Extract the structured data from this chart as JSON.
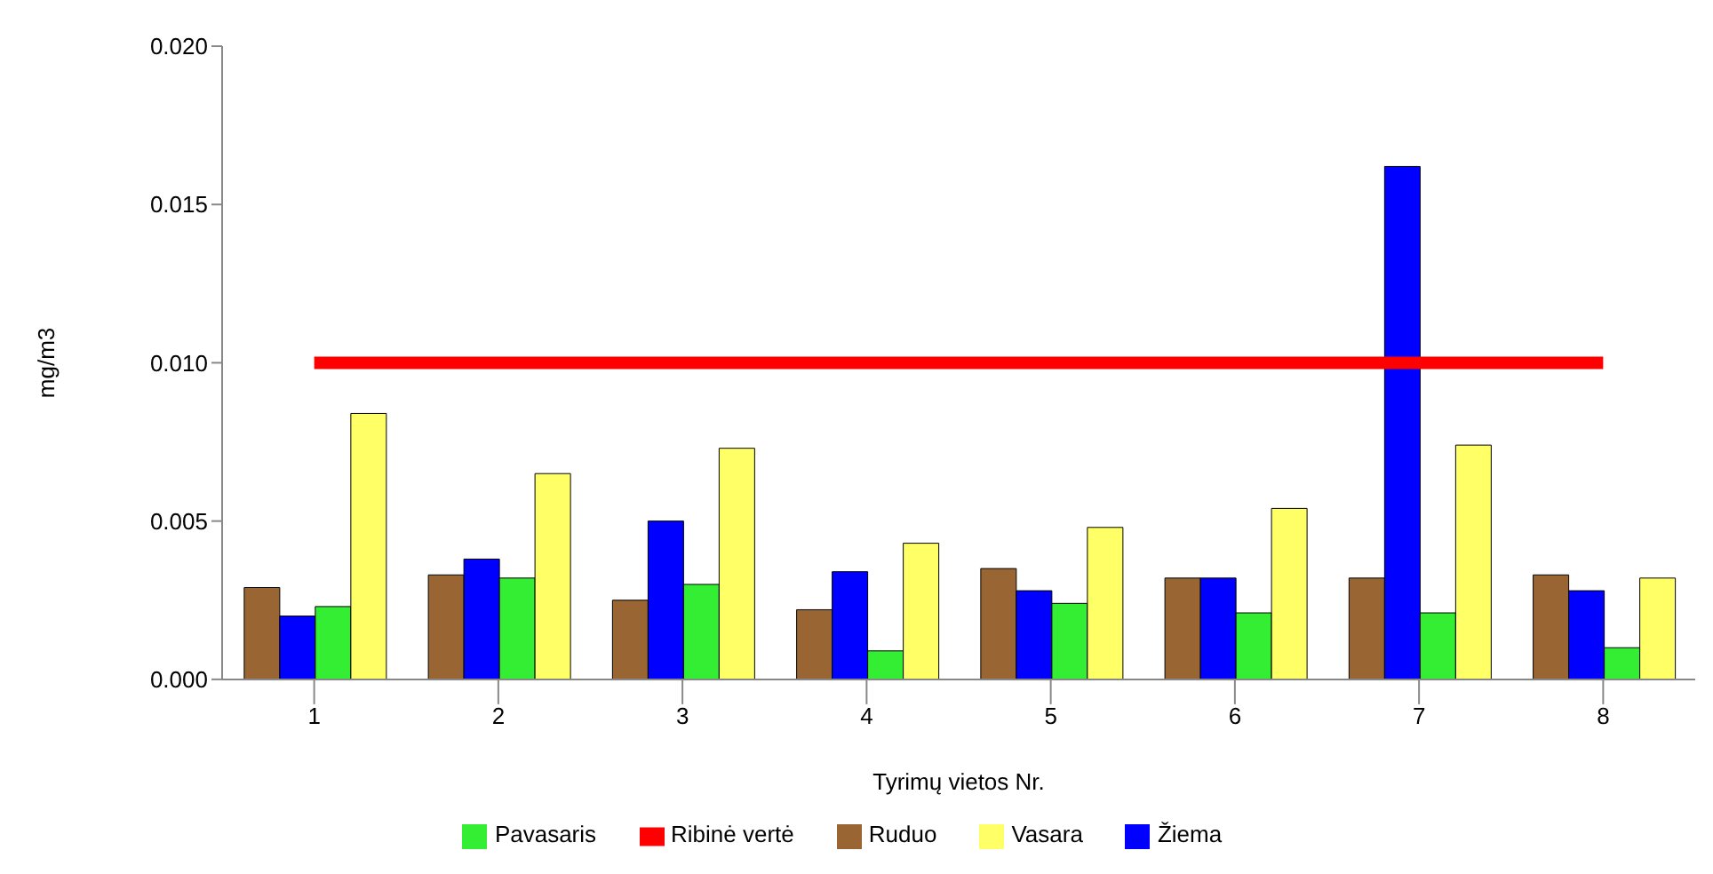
{
  "chart_data": {
    "type": "bar",
    "xlabel": "Tyrimų vietos Nr.",
    "ylabel": "mg/m3",
    "categories": [
      "1",
      "2",
      "3",
      "4",
      "5",
      "6",
      "7",
      "8"
    ],
    "series": [
      {
        "name": "Ruduo",
        "color": "#996633",
        "values": [
          0.0029,
          0.0033,
          0.0025,
          0.0022,
          0.0035,
          0.0032,
          0.0032,
          0.0033
        ]
      },
      {
        "name": "Žiema",
        "color": "#0000ff",
        "values": [
          0.002,
          0.0038,
          0.005,
          0.0034,
          0.0028,
          0.0032,
          0.0162,
          0.0028
        ]
      },
      {
        "name": "Pavasaris",
        "color": "#33ee33",
        "values": [
          0.0023,
          0.0032,
          0.003,
          0.0009,
          0.0024,
          0.0021,
          0.0021,
          0.001
        ]
      },
      {
        "name": "Vasara",
        "color": "#ffff66",
        "values": [
          0.0084,
          0.0065,
          0.0073,
          0.0043,
          0.0048,
          0.0054,
          0.0074,
          0.0032
        ]
      },
      {
        "name": "Ribinė vertė",
        "type": "line",
        "color": "#ff0000",
        "values": [
          0.01,
          0.01,
          0.01,
          0.01,
          0.01,
          0.01,
          0.01,
          0.01
        ]
      }
    ],
    "ylim": [
      0,
      0.02
    ],
    "yticks": [
      {
        "value": 0,
        "label": "0.000"
      },
      {
        "value": 0.005,
        "label": "0.005"
      },
      {
        "value": 0.01,
        "label": "0.010"
      },
      {
        "value": 0.015,
        "label": "0.015"
      },
      {
        "value": 0.02,
        "label": "0.020"
      }
    ],
    "grid": false,
    "legend": "bottom",
    "marker": "none"
  }
}
